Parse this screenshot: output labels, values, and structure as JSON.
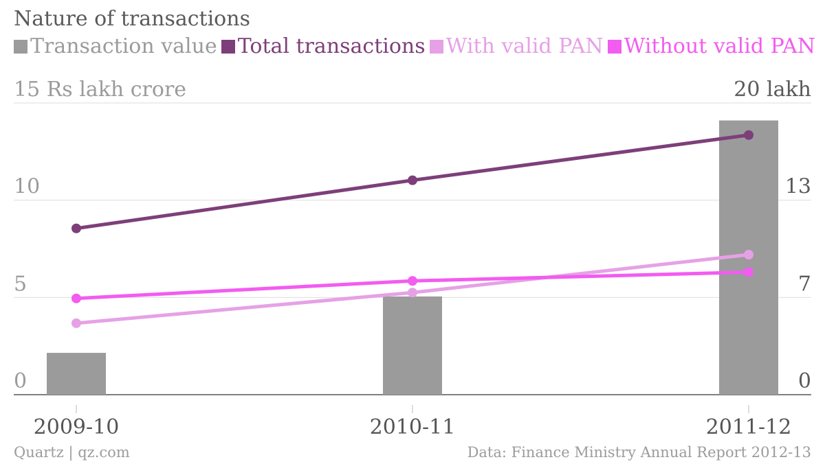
{
  "chart_data": {
    "type": "bar",
    "title": "Nature of transactions",
    "categories": [
      "2009-10",
      "2010-11",
      "2011-12"
    ],
    "y_left": {
      "unit_label": "15 Rs lakh crore",
      "ticks": [
        "0",
        "5",
        "10"
      ],
      "ylim": [
        0,
        15
      ]
    },
    "y_right": {
      "unit_label": "20 lakh",
      "ticks": [
        "0",
        "7",
        "13"
      ],
      "ylim": [
        0,
        20
      ]
    },
    "series": [
      {
        "name": "Transaction value",
        "kind": "bar",
        "axis": "left",
        "color": "#9b9b9b",
        "values": [
          2.15,
          5.05,
          14.1
        ]
      },
      {
        "name": "Total transactions",
        "kind": "line",
        "axis": "right",
        "color": "#7d3f7a",
        "values": [
          11.4,
          14.7,
          17.8
        ]
      },
      {
        "name": "With valid PAN",
        "kind": "line",
        "axis": "right",
        "color": "#e6a1e6",
        "values": [
          4.9,
          7.0,
          9.6
        ]
      },
      {
        "name": "Without valid PAN",
        "kind": "line",
        "axis": "right",
        "color": "#f25cf0",
        "values": [
          6.6,
          7.8,
          8.4
        ]
      }
    ],
    "grid": true,
    "legend_position": "top-left"
  },
  "footer": {
    "source_left": "Quartz | qz.com",
    "source_right": "Data: Finance Ministry Annual Report 2012-13"
  }
}
